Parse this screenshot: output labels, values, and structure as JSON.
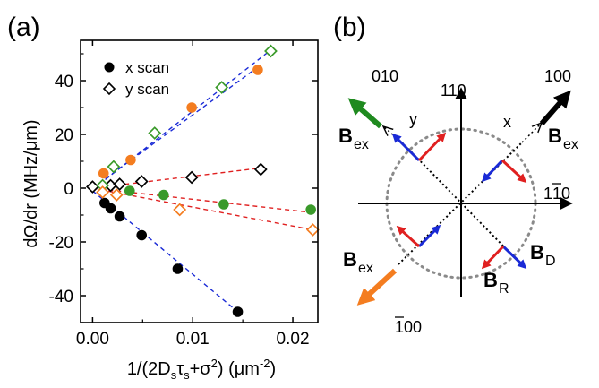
{
  "panel_labels": {
    "a": "(a)",
    "b": "(b)"
  },
  "chart_data": [
    {
      "type": "scatter",
      "panel": "(a)",
      "xlabel": "1/(2D_sτ_s+σ²) (μm⁻²)",
      "ylabel": "dΩ/dr (MHz/μm)",
      "xlim": [
        -0.0012,
        0.0225
      ],
      "ylim": [
        -50,
        55
      ],
      "x_ticks": [
        0.0,
        0.01,
        0.02
      ],
      "x_tick_labels": [
        "0.00",
        "0.01",
        "0.02"
      ],
      "y_ticks": [
        -40,
        -20,
        0,
        20,
        40
      ],
      "y_tick_labels": [
        "-40",
        "-20",
        "0",
        "20",
        "40"
      ],
      "grid": false,
      "legend": {
        "position": "top-center",
        "entries": [
          {
            "label": "x scan",
            "marker": "filled-circle",
            "color": "#000000"
          },
          {
            "label": "y scan",
            "marker": "open-diamond",
            "color": "#000000"
          }
        ]
      },
      "series": [
        {
          "marker": "filled-circle",
          "color": "#000000",
          "points": [
            [
              0.0012,
              -5.5
            ],
            [
              0.0018,
              -7.5
            ],
            [
              0.0027,
              -10.5
            ],
            [
              0.0049,
              -17.5
            ],
            [
              0.0085,
              -30
            ],
            [
              0.0145,
              -46
            ]
          ],
          "fit": {
            "color": "#1a2ad6",
            "from": [
              0.0,
              -1.0
            ],
            "to": [
              0.0145,
              -46
            ]
          }
        },
        {
          "marker": "open-diamond",
          "color": "#000000",
          "points": [
            [
              0.0,
              0.5
            ],
            [
              0.0018,
              1.0
            ],
            [
              0.0027,
              1.5
            ],
            [
              0.0049,
              2.5
            ],
            [
              0.0099,
              4.0
            ],
            [
              0.0168,
              7.0
            ]
          ],
          "fit": {
            "color": "#e02020",
            "from": [
              0.0,
              0.0
            ],
            "to": [
              0.0168,
              7.5
            ]
          }
        },
        {
          "marker": "filled-circle",
          "color": "#f47d20",
          "points": [
            [
              0.0011,
              5.5
            ],
            [
              0.0038,
              10.5
            ],
            [
              0.0099,
              30
            ],
            [
              0.0165,
              44
            ]
          ],
          "fit": {
            "color": "#1a2ad6",
            "from": [
              0.0,
              0.0
            ],
            "to": [
              0.0165,
              45
            ]
          }
        },
        {
          "marker": "open-diamond",
          "color": "#3a9a2a",
          "points": [
            [
              0.001,
              1.0
            ],
            [
              0.0021,
              8.0
            ],
            [
              0.0062,
              20.5
            ],
            [
              0.0129,
              37.5
            ],
            [
              0.0178,
              51
            ]
          ],
          "fit": {
            "color": "#1a2ad6",
            "from": [
              0.0,
              -0.5
            ],
            "to": [
              0.018,
              52
            ]
          }
        },
        {
          "marker": "filled-circle",
          "color": "#3a9a2a",
          "points": [
            [
              0.0037,
              -1.0
            ],
            [
              0.0071,
              -2.5
            ],
            [
              0.0131,
              -6.0
            ],
            [
              0.0218,
              -8.0
            ]
          ],
          "fit": {
            "color": "#e02020",
            "from": [
              0.0,
              0.0
            ],
            "to": [
              0.0218,
              -9.0
            ]
          }
        },
        {
          "marker": "open-diamond",
          "color": "#f47d20",
          "points": [
            [
              0.001,
              -1.5
            ],
            [
              0.0024,
              -2.5
            ],
            [
              0.0087,
              -8.0
            ],
            [
              0.022,
              -15.5
            ]
          ],
          "fit": {
            "color": "#e02020",
            "from": [
              0.0,
              0.0
            ],
            "to": [
              0.022,
              -15.5
            ]
          }
        }
      ]
    }
  ],
  "panel_b": {
    "labels": {
      "l110": "110",
      "l1b10_pre": "1",
      "l1b10_bar": "1",
      "l1b10_post": "0",
      "l100": "100",
      "l010": "010",
      "lb100_bar": "1",
      "lb100_rest": "00",
      "x": "x",
      "y": "y"
    },
    "fields": {
      "bex_main": "B",
      "bex_sub": "ex",
      "bd_main": "B",
      "bd_sub": "D",
      "br_main": "B",
      "br_sub": "R"
    },
    "colors": {
      "black": "#000000",
      "green": "#1f8a1f",
      "orange": "#f47d20",
      "blue": "#1a2ad6",
      "red": "#e02020",
      "circle": "#8a8a8a"
    }
  }
}
